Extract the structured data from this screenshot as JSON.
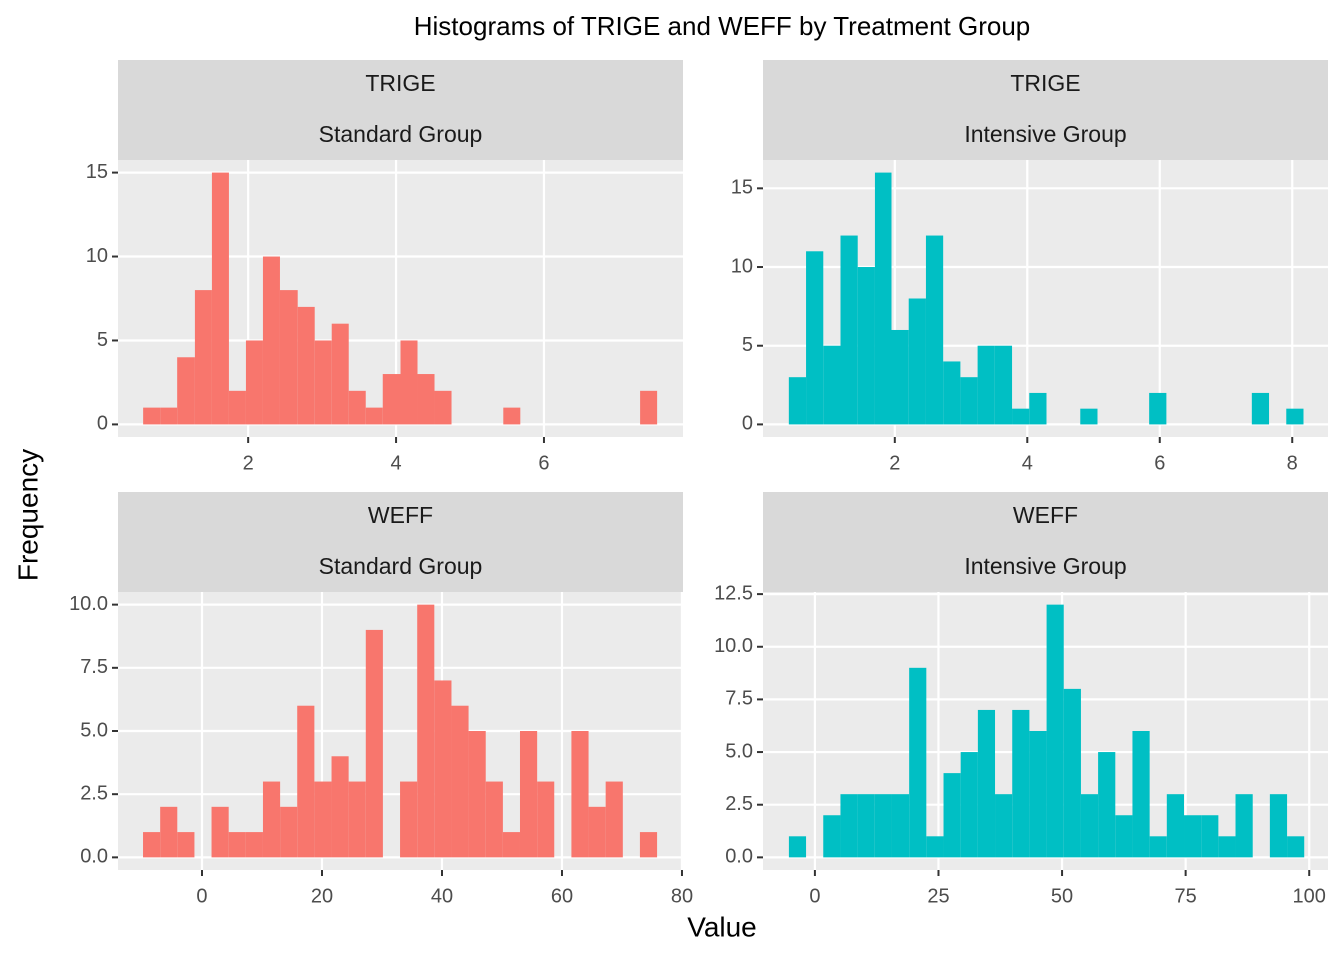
{
  "title": "Histograms of TRIGE and WEFF by Treatment Group",
  "xlabel": "Value",
  "ylabel": "Frequency",
  "chart_data": [
    {
      "type": "histogram",
      "facet": "TRIGE",
      "group": "Standard Group",
      "color": "#F8766D",
      "grid": true,
      "bins": [
        0.58,
        0.81,
        1.04,
        1.28,
        1.51,
        1.74,
        1.97,
        2.2,
        2.43,
        2.67,
        2.9,
        3.13,
        3.36,
        3.59,
        3.82,
        4.06,
        4.29,
        4.52,
        4.75,
        4.98,
        5.21,
        5.45,
        5.68,
        5.91,
        6.14,
        6.37,
        6.6,
        6.84,
        7.07,
        7.3,
        7.53
      ],
      "counts": [
        1,
        1,
        4,
        8,
        15,
        2,
        5,
        10,
        8,
        7,
        5,
        6,
        2,
        1,
        3,
        5,
        3,
        2,
        0,
        0,
        0,
        1,
        0,
        0,
        0,
        0,
        0,
        0,
        0,
        2
      ],
      "xlim": [
        0.24,
        7.88
      ],
      "ylim": [
        -0.75,
        15.75
      ],
      "xticks": [
        2,
        4,
        6
      ],
      "yticks": [
        0,
        5,
        10,
        15
      ]
    },
    {
      "type": "histogram",
      "facet": "TRIGE",
      "group": "Intensive Group",
      "color": "#00BFC4",
      "grid": true,
      "bins": [
        0.4,
        0.66,
        0.92,
        1.18,
        1.44,
        1.7,
        1.95,
        2.21,
        2.47,
        2.73,
        2.99,
        3.25,
        3.51,
        3.77,
        4.03,
        4.29,
        4.54,
        4.8,
        5.06,
        5.32,
        5.58,
        5.84,
        6.1,
        6.36,
        6.62,
        6.88,
        7.13,
        7.39,
        7.65,
        7.91,
        8.17
      ],
      "counts": [
        3,
        11,
        5,
        12,
        10,
        16,
        6,
        8,
        12,
        4,
        3,
        5,
        5,
        1,
        2,
        0,
        0,
        1,
        0,
        0,
        0,
        2,
        0,
        0,
        0,
        0,
        0,
        2,
        0,
        1
      ],
      "xlim": [
        0.01,
        8.54
      ],
      "ylim": [
        -0.8,
        16.8
      ],
      "xticks": [
        2,
        4,
        6,
        8
      ],
      "yticks": [
        0,
        5,
        10,
        15
      ]
    },
    {
      "type": "histogram",
      "facet": "WEFF",
      "group": "Standard Group",
      "color": "#F8766D",
      "grid": true,
      "bins": [
        -9.83,
        -6.97,
        -4.12,
        -1.26,
        1.59,
        4.45,
        7.31,
        10.16,
        13.02,
        15.87,
        18.73,
        21.59,
        24.44,
        27.3,
        30.15,
        33.01,
        35.87,
        38.72,
        41.58,
        44.43,
        47.29,
        50.15,
        53.0,
        55.86,
        58.71,
        61.57,
        64.43,
        67.28,
        70.14,
        72.99,
        75.85
      ],
      "counts": [
        1,
        2,
        1,
        0,
        2,
        1,
        1,
        3,
        2,
        6,
        3,
        4,
        3,
        9,
        0,
        3,
        10,
        7,
        6,
        5,
        3,
        1,
        5,
        3,
        0,
        5,
        2,
        3,
        0,
        1
      ],
      "xlim": [
        -14,
        80.17
      ],
      "ylim": [
        -0.5,
        10.5
      ],
      "xticks": [
        0,
        20,
        40,
        60,
        80
      ],
      "yticks": [
        {
          "value": 0,
          "label": "0.0"
        },
        2.5,
        {
          "value": 5,
          "label": "5.0"
        },
        7.5,
        {
          "value": 10,
          "label": "10.0"
        }
      ]
    },
    {
      "type": "histogram",
      "facet": "WEFF",
      "group": "Intensive Group",
      "color": "#00BFC4",
      "grid": true,
      "bins": [
        -5.26,
        -1.79,
        1.69,
        5.17,
        8.64,
        12.12,
        15.59,
        19.07,
        22.54,
        26.02,
        29.49,
        32.97,
        36.44,
        39.92,
        43.39,
        46.87,
        50.34,
        53.82,
        57.29,
        60.77,
        64.24,
        67.72,
        71.19,
        74.67,
        78.14,
        81.62,
        85.09,
        88.57,
        92.04,
        95.52,
        98.99
      ],
      "counts": [
        1,
        0,
        2,
        3,
        3,
        3,
        3,
        9,
        1,
        4,
        5,
        7,
        3,
        7,
        6,
        12,
        8,
        3,
        5,
        2,
        6,
        1,
        3,
        2,
        2,
        1,
        3,
        0,
        3,
        1
      ],
      "xlim": [
        -10.5,
        103.8
      ],
      "ylim": [
        -0.6,
        12.6
      ],
      "xticks": [
        0,
        25,
        50,
        75,
        100
      ],
      "yticks": [
        {
          "value": 0,
          "label": "0.0"
        },
        2.5,
        {
          "value": 5,
          "label": "5.0"
        },
        7.5,
        {
          "value": 10,
          "label": "10.0"
        },
        {
          "value": 12.5,
          "label": "12.5"
        }
      ]
    }
  ]
}
